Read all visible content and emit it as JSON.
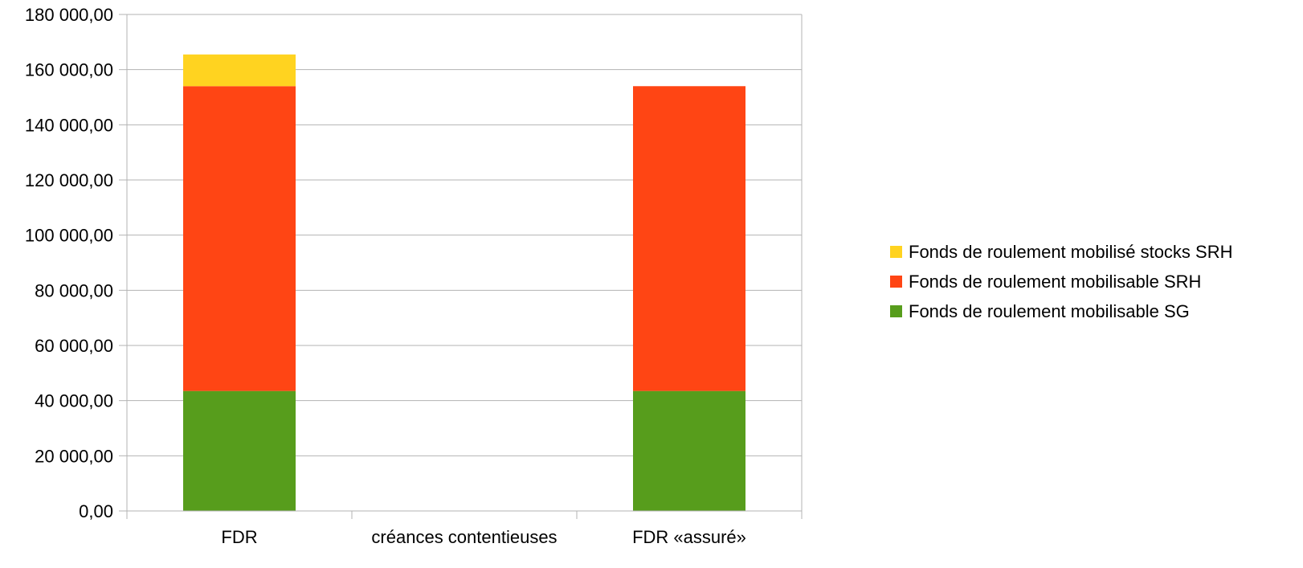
{
  "chart_data": {
    "type": "bar",
    "stacked": true,
    "title": "",
    "xlabel": "",
    "ylabel": "",
    "categories": [
      "FDR",
      "créances contentieuses",
      "FDR «assuré»"
    ],
    "ylim": [
      0,
      180000
    ],
    "yticks": [
      0,
      20000,
      40000,
      60000,
      80000,
      100000,
      120000,
      140000,
      160000,
      180000
    ],
    "ytick_labels": [
      "0,00",
      "20 000,00",
      "40 000,00",
      "60 000,00",
      "80 000,00",
      "100 000,00",
      "120 000,00",
      "140 000,00",
      "160 000,00",
      "180 000,00"
    ],
    "grid": true,
    "legend_position": "right",
    "series": [
      {
        "name": "Fonds de roulement mobilisable SG",
        "color": "#579d1c",
        "values": [
          43500,
          0,
          43500
        ]
      },
      {
        "name": "Fonds de roulement mobilisable SRH",
        "color": "#ff4514",
        "values": [
          110500,
          0,
          110500
        ]
      },
      {
        "name": "Fonds de roulement mobilisé stocks SRH",
        "color": "#ffd320",
        "values": [
          11500,
          0,
          0
        ]
      }
    ],
    "legend_order": [
      2,
      1,
      0
    ]
  }
}
